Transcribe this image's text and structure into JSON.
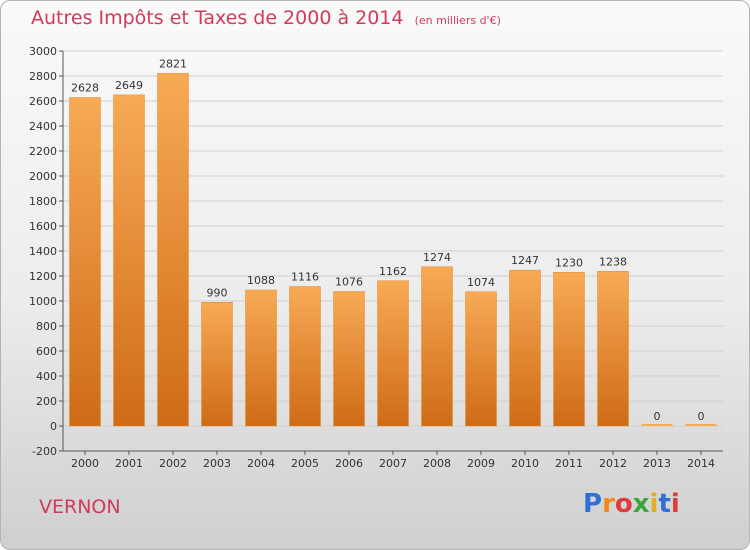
{
  "chart_data": {
    "type": "bar",
    "title": "Autres Impôts et Taxes de 2000 à 2014",
    "subtitle": "(en milliers d'€)",
    "categories": [
      "2000",
      "2001",
      "2002",
      "2003",
      "2004",
      "2005",
      "2006",
      "2007",
      "2008",
      "2009",
      "2010",
      "2011",
      "2012",
      "2013",
      "2014"
    ],
    "values": [
      2628,
      2649,
      2821,
      990,
      1088,
      1116,
      1076,
      1162,
      1274,
      1074,
      1247,
      1230,
      1238,
      0,
      0
    ],
    "data_labels": [
      "2628",
      "2649",
      "2821",
      "990",
      "1088",
      "1116",
      "1076",
      "1162",
      "1274",
      "1074",
      "1247",
      "1230",
      "1238",
      "0",
      "0"
    ],
    "ylim": [
      -200,
      3000
    ],
    "yticks": [
      -200,
      0,
      200,
      400,
      600,
      800,
      1000,
      1200,
      1400,
      1600,
      1800,
      2000,
      2200,
      2400,
      2600,
      2800,
      3000
    ],
    "xlabel": "",
    "ylabel": "",
    "grid": "horizontal",
    "legend": "none",
    "colors": {
      "bar_top": "#f8aa55",
      "bar_bottom": "#cf6b16",
      "grid": "#d0d0d0",
      "axis_text": "#333333",
      "label_text": "#333333"
    }
  },
  "footer": {
    "commune": "VERNON",
    "logo_letters": [
      "P",
      "r",
      "o",
      "x",
      "i",
      "t",
      "i"
    ],
    "logo_colors": [
      "#2f6fd6",
      "#f08a1c",
      "#e23b3b",
      "#3da63b",
      "#e0b020",
      "#2f6fd6",
      "#e23b3b"
    ]
  }
}
